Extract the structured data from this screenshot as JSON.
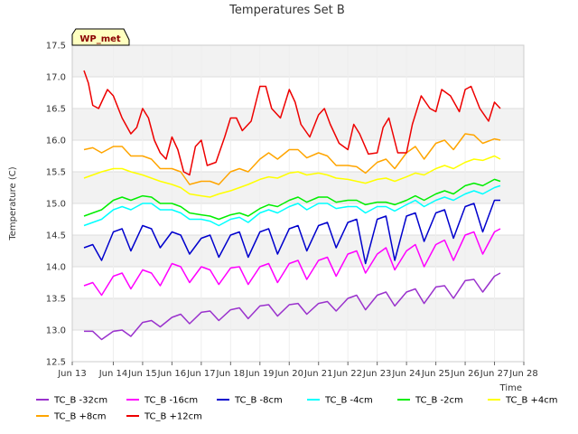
{
  "chart_data": {
    "type": "line",
    "title": "Temperatures Set B",
    "xlabel": "Time",
    "ylabel": "Temperature (C)",
    "badge": "WP_met",
    "xlim": [
      12.6,
      28
    ],
    "ylim": [
      12.5,
      17.5
    ],
    "x_ticks": [
      {
        "value": 12.6,
        "label": "Jun 13"
      },
      {
        "value": 14,
        "label": "Jun 14"
      },
      {
        "value": 15,
        "label": "Jun 15"
      },
      {
        "value": 16,
        "label": "Jun 16"
      },
      {
        "value": 17,
        "label": "Jun 17"
      },
      {
        "value": 18,
        "label": "Jun 18"
      },
      {
        "value": 19,
        "label": "Jun 19"
      },
      {
        "value": 20,
        "label": "Jun 20"
      },
      {
        "value": 21,
        "label": "Jun 21"
      },
      {
        "value": 22,
        "label": "Jun 22"
      },
      {
        "value": 23,
        "label": "Jun 23"
      },
      {
        "value": 24,
        "label": "Jun 24"
      },
      {
        "value": 25,
        "label": "Jun 25"
      },
      {
        "value": 26,
        "label": "Jun 26"
      },
      {
        "value": 27,
        "label": "Jun 27"
      },
      {
        "value": 28,
        "label": "Jun 28"
      }
    ],
    "y_ticks": [
      "12.5",
      "13.0",
      "13.5",
      "14.0",
      "14.5",
      "15.0",
      "15.5",
      "16.0",
      "16.5",
      "17.0",
      "17.5"
    ],
    "grid": true,
    "legend_position": "bottom",
    "series": [
      {
        "name": "TC_B -32cm",
        "color": "#9a32cd",
        "x": [
          13.0,
          13.3,
          13.6,
          14.0,
          14.3,
          14.6,
          15.0,
          15.3,
          15.6,
          16.0,
          16.3,
          16.6,
          17.0,
          17.3,
          17.6,
          18.0,
          18.3,
          18.6,
          19.0,
          19.3,
          19.6,
          20.0,
          20.3,
          20.6,
          21.0,
          21.3,
          21.6,
          22.0,
          22.3,
          22.6,
          23.0,
          23.3,
          23.6,
          24.0,
          24.3,
          24.6,
          25.0,
          25.3,
          25.6,
          26.0,
          26.3,
          26.6,
          27.0,
          27.2
        ],
        "y": [
          12.98,
          12.98,
          12.85,
          12.98,
          13.0,
          12.9,
          13.12,
          13.15,
          13.05,
          13.2,
          13.25,
          13.1,
          13.28,
          13.3,
          13.15,
          13.32,
          13.35,
          13.18,
          13.38,
          13.4,
          13.22,
          13.4,
          13.42,
          13.25,
          13.42,
          13.45,
          13.3,
          13.5,
          13.55,
          13.32,
          13.55,
          13.6,
          13.38,
          13.6,
          13.65,
          13.42,
          13.68,
          13.7,
          13.5,
          13.78,
          13.8,
          13.6,
          13.85,
          13.9
        ]
      },
      {
        "name": "TC_B -16cm",
        "color": "#ff00ff",
        "x": [
          13.0,
          13.3,
          13.6,
          14.0,
          14.3,
          14.6,
          15.0,
          15.3,
          15.6,
          16.0,
          16.3,
          16.6,
          17.0,
          17.3,
          17.6,
          18.0,
          18.3,
          18.6,
          19.0,
          19.3,
          19.6,
          20.0,
          20.3,
          20.6,
          21.0,
          21.3,
          21.6,
          22.0,
          22.3,
          22.6,
          23.0,
          23.3,
          23.6,
          24.0,
          24.3,
          24.6,
          25.0,
          25.3,
          25.6,
          26.0,
          26.3,
          26.6,
          27.0,
          27.2
        ],
        "y": [
          13.7,
          13.75,
          13.55,
          13.85,
          13.9,
          13.65,
          13.95,
          13.9,
          13.7,
          14.05,
          14.0,
          13.75,
          14.0,
          13.95,
          13.72,
          13.98,
          14.0,
          13.72,
          14.0,
          14.05,
          13.75,
          14.05,
          14.1,
          13.8,
          14.1,
          14.15,
          13.85,
          14.2,
          14.25,
          13.9,
          14.2,
          14.3,
          13.95,
          14.25,
          14.35,
          14.0,
          14.35,
          14.42,
          14.1,
          14.5,
          14.55,
          14.2,
          14.55,
          14.6
        ]
      },
      {
        "name": "TC_B -8cm",
        "color": "#0000cd",
        "x": [
          13.0,
          13.3,
          13.6,
          14.0,
          14.3,
          14.6,
          15.0,
          15.3,
          15.6,
          16.0,
          16.3,
          16.6,
          17.0,
          17.3,
          17.6,
          18.0,
          18.3,
          18.6,
          19.0,
          19.3,
          19.6,
          20.0,
          20.3,
          20.6,
          21.0,
          21.3,
          21.6,
          22.0,
          22.3,
          22.6,
          23.0,
          23.3,
          23.6,
          24.0,
          24.3,
          24.6,
          25.0,
          25.3,
          25.6,
          26.0,
          26.3,
          26.6,
          27.0,
          27.2
        ],
        "y": [
          14.3,
          14.35,
          14.1,
          14.55,
          14.6,
          14.25,
          14.65,
          14.6,
          14.3,
          14.55,
          14.5,
          14.2,
          14.45,
          14.5,
          14.15,
          14.5,
          14.55,
          14.15,
          14.55,
          14.6,
          14.2,
          14.6,
          14.65,
          14.25,
          14.65,
          14.7,
          14.3,
          14.7,
          14.75,
          14.05,
          14.75,
          14.8,
          14.1,
          14.8,
          14.85,
          14.4,
          14.85,
          14.9,
          14.45,
          14.95,
          15.0,
          14.55,
          15.05,
          15.05
        ]
      },
      {
        "name": "TC_B -4cm",
        "color": "#00ffff",
        "x": [
          13.0,
          13.3,
          13.6,
          14.0,
          14.3,
          14.6,
          15.0,
          15.3,
          15.6,
          16.0,
          16.3,
          16.6,
          17.0,
          17.3,
          17.6,
          18.0,
          18.3,
          18.6,
          19.0,
          19.3,
          19.6,
          20.0,
          20.3,
          20.6,
          21.0,
          21.3,
          21.6,
          22.0,
          22.3,
          22.6,
          23.0,
          23.3,
          23.6,
          24.0,
          24.3,
          24.6,
          25.0,
          25.3,
          25.6,
          26.0,
          26.3,
          26.6,
          27.0,
          27.2
        ],
        "y": [
          14.65,
          14.7,
          14.75,
          14.9,
          14.95,
          14.9,
          15.0,
          15.0,
          14.9,
          14.9,
          14.85,
          14.75,
          14.75,
          14.72,
          14.65,
          14.75,
          14.78,
          14.7,
          14.85,
          14.9,
          14.85,
          14.95,
          15.0,
          14.9,
          15.0,
          15.0,
          14.92,
          14.95,
          14.95,
          14.85,
          14.95,
          14.95,
          14.88,
          14.98,
          15.05,
          14.95,
          15.05,
          15.1,
          15.05,
          15.15,
          15.2,
          15.15,
          15.25,
          15.28
        ]
      },
      {
        "name": "TC_B -2cm",
        "color": "#00ee00",
        "x": [
          13.0,
          13.3,
          13.6,
          14.0,
          14.3,
          14.6,
          15.0,
          15.3,
          15.6,
          16.0,
          16.3,
          16.6,
          17.0,
          17.3,
          17.6,
          18.0,
          18.3,
          18.6,
          19.0,
          19.3,
          19.6,
          20.0,
          20.3,
          20.6,
          21.0,
          21.3,
          21.6,
          22.0,
          22.3,
          22.6,
          23.0,
          23.3,
          23.6,
          24.0,
          24.3,
          24.6,
          25.0,
          25.3,
          25.6,
          26.0,
          26.3,
          26.6,
          27.0,
          27.2
        ],
        "y": [
          14.8,
          14.85,
          14.9,
          15.05,
          15.1,
          15.05,
          15.12,
          15.1,
          15.0,
          15.0,
          14.95,
          14.85,
          14.82,
          14.8,
          14.75,
          14.82,
          14.85,
          14.8,
          14.92,
          14.98,
          14.95,
          15.05,
          15.1,
          15.02,
          15.1,
          15.1,
          15.02,
          15.05,
          15.05,
          14.98,
          15.02,
          15.02,
          14.98,
          15.05,
          15.12,
          15.05,
          15.15,
          15.2,
          15.15,
          15.28,
          15.32,
          15.28,
          15.38,
          15.35
        ]
      },
      {
        "name": "TC_B +4cm",
        "color": "#ffff00",
        "x": [
          13.0,
          13.3,
          13.6,
          14.0,
          14.3,
          14.6,
          15.0,
          15.3,
          15.6,
          16.0,
          16.3,
          16.6,
          17.0,
          17.3,
          17.6,
          18.0,
          18.3,
          18.6,
          19.0,
          19.3,
          19.6,
          20.0,
          20.3,
          20.6,
          21.0,
          21.3,
          21.6,
          22.0,
          22.3,
          22.6,
          23.0,
          23.3,
          23.6,
          24.0,
          24.3,
          24.6,
          25.0,
          25.3,
          25.6,
          26.0,
          26.3,
          26.6,
          27.0,
          27.2
        ],
        "y": [
          15.4,
          15.45,
          15.5,
          15.55,
          15.55,
          15.5,
          15.45,
          15.4,
          15.35,
          15.3,
          15.25,
          15.15,
          15.12,
          15.1,
          15.15,
          15.2,
          15.25,
          15.3,
          15.38,
          15.42,
          15.4,
          15.48,
          15.5,
          15.45,
          15.48,
          15.45,
          15.4,
          15.38,
          15.35,
          15.32,
          15.38,
          15.4,
          15.35,
          15.42,
          15.48,
          15.45,
          15.55,
          15.6,
          15.55,
          15.65,
          15.7,
          15.68,
          15.75,
          15.7
        ]
      },
      {
        "name": "TC_B +8cm",
        "color": "#ffa500",
        "x": [
          13.0,
          13.3,
          13.6,
          14.0,
          14.3,
          14.6,
          15.0,
          15.3,
          15.6,
          16.0,
          16.3,
          16.6,
          17.0,
          17.3,
          17.6,
          18.0,
          18.3,
          18.6,
          19.0,
          19.3,
          19.6,
          20.0,
          20.3,
          20.6,
          21.0,
          21.3,
          21.6,
          22.0,
          22.3,
          22.6,
          23.0,
          23.3,
          23.6,
          24.0,
          24.3,
          24.6,
          25.0,
          25.3,
          25.6,
          26.0,
          26.3,
          26.6,
          27.0,
          27.2
        ],
        "y": [
          15.85,
          15.88,
          15.8,
          15.9,
          15.9,
          15.75,
          15.75,
          15.7,
          15.55,
          15.55,
          15.5,
          15.3,
          15.35,
          15.35,
          15.3,
          15.5,
          15.55,
          15.5,
          15.7,
          15.8,
          15.7,
          15.85,
          15.85,
          15.72,
          15.8,
          15.75,
          15.6,
          15.6,
          15.58,
          15.48,
          15.65,
          15.7,
          15.55,
          15.8,
          15.9,
          15.7,
          15.95,
          16.0,
          15.85,
          16.1,
          16.08,
          15.95,
          16.02,
          16.0
        ]
      },
      {
        "name": "TC_B +12cm",
        "color": "#ee0000",
        "x": [
          13.0,
          13.15,
          13.3,
          13.5,
          13.8,
          14.0,
          14.3,
          14.6,
          14.8,
          15.0,
          15.2,
          15.4,
          15.6,
          15.8,
          16.0,
          16.2,
          16.4,
          16.6,
          16.8,
          17.0,
          17.2,
          17.5,
          17.8,
          18.0,
          18.2,
          18.4,
          18.7,
          19.0,
          19.2,
          19.4,
          19.7,
          20.0,
          20.2,
          20.4,
          20.7,
          21.0,
          21.2,
          21.4,
          21.7,
          22.0,
          22.2,
          22.4,
          22.7,
          23.0,
          23.2,
          23.4,
          23.7,
          24.0,
          24.2,
          24.5,
          24.8,
          25.0,
          25.2,
          25.5,
          25.8,
          26.0,
          26.2,
          26.5,
          26.8,
          27.0,
          27.2
        ],
        "y": [
          17.1,
          16.9,
          16.55,
          16.5,
          16.8,
          16.7,
          16.35,
          16.1,
          16.2,
          16.5,
          16.35,
          16.0,
          15.8,
          15.7,
          16.05,
          15.85,
          15.5,
          15.45,
          15.9,
          16.0,
          15.6,
          15.65,
          16.05,
          16.35,
          16.35,
          16.15,
          16.3,
          16.85,
          16.85,
          16.5,
          16.35,
          16.8,
          16.6,
          16.25,
          16.05,
          16.4,
          16.5,
          16.25,
          15.95,
          15.85,
          16.25,
          16.1,
          15.78,
          15.8,
          16.2,
          16.35,
          15.8,
          15.8,
          16.25,
          16.7,
          16.5,
          16.45,
          16.8,
          16.7,
          16.45,
          16.8,
          16.85,
          16.5,
          16.3,
          16.6,
          16.5
        ]
      }
    ]
  }
}
